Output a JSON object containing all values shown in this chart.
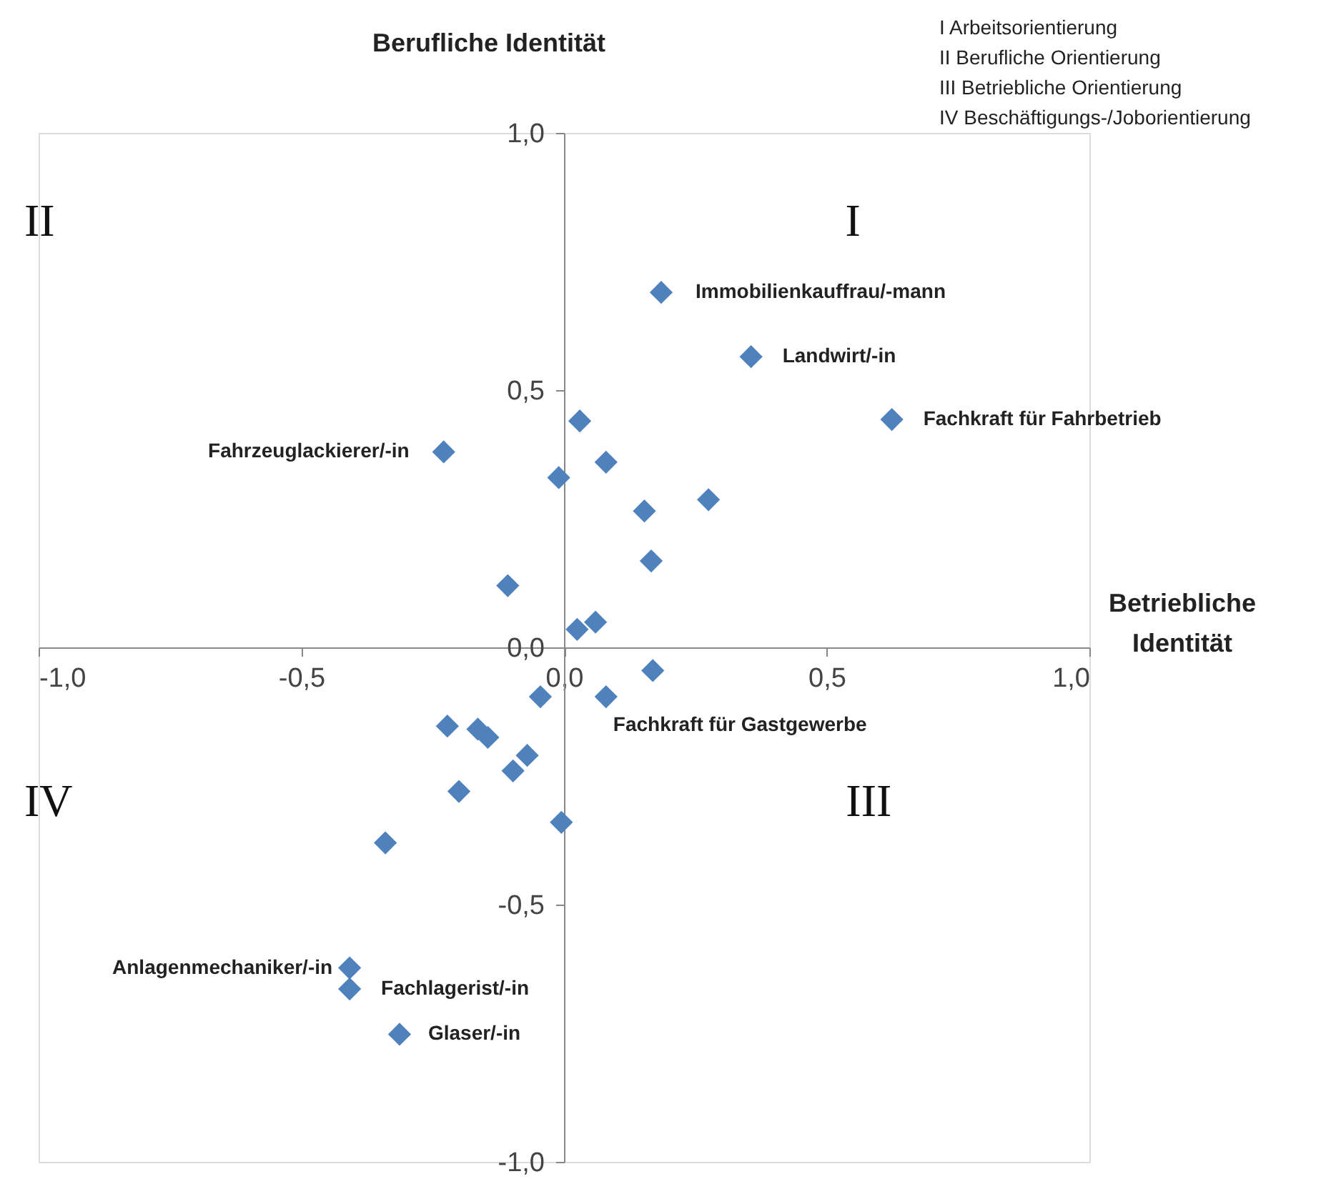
{
  "chart_data": {
    "type": "scatter",
    "xlabel": "Betriebliche Identität",
    "ylabel": "Berufliche Identität",
    "x": [
      0.185,
      0.356,
      0.624,
      -0.229,
      0.03,
      -0.01,
      0.08,
      0.153,
      0.275,
      0.166,
      -0.107,
      0.025,
      0.06,
      0.169,
      0.08,
      -0.045,
      -0.222,
      -0.164,
      -0.145,
      -0.07,
      -0.097,
      -0.2,
      -0.005,
      -0.34,
      -0.408,
      -0.408,
      -0.313
    ],
    "series": [
      {
        "color": "#4f81bd",
        "values": [
          0.69,
          0.565,
          0.443,
          0.38,
          0.44,
          0.33,
          0.36,
          0.265,
          0.287,
          0.168,
          0.12,
          0.035,
          0.049,
          -0.045,
          -0.096,
          -0.096,
          -0.153,
          -0.159,
          -0.175,
          -0.21,
          -0.24,
          -0.28,
          -0.34,
          -0.38,
          -0.623,
          -0.664,
          -0.752
        ]
      }
    ],
    "marker": "diamond",
    "xlim": [
      -1.0,
      1.0
    ],
    "ylim": [
      -1.0,
      1.0
    ],
    "xticks": [
      {
        "value": -1.0,
        "label": "-1,0"
      },
      {
        "value": -0.5,
        "label": "-0,5"
      },
      {
        "value": 0.0,
        "label": "0,0"
      },
      {
        "value": 0.5,
        "label": "0,5"
      },
      {
        "value": 1.0,
        "label": "1,0"
      }
    ],
    "yticks": [
      {
        "value": -1.0,
        "label": "-1,0"
      },
      {
        "value": -0.5,
        "label": "-0,5"
      },
      {
        "value": 0.0,
        "label": "0,0"
      },
      {
        "value": 0.5,
        "label": "0,5"
      },
      {
        "value": 1.0,
        "label": "1,0"
      }
    ],
    "grid": false,
    "annotations": [
      {
        "text": "Immobilienkauffrau/-mann",
        "x": 0.185,
        "y": 0.69
      },
      {
        "text": "Landwirt/-in",
        "x": 0.356,
        "y": 0.565
      },
      {
        "text": "Fachkraft für Fahrbetrieb",
        "x": 0.624,
        "y": 0.443
      },
      {
        "text": "Fahrzeuglackierer/-in",
        "x": -0.229,
        "y": 0.38
      },
      {
        "text": "Fachkraft für Gastgewerbe",
        "x": 0.08,
        "y": -0.096
      },
      {
        "text": "Anlagenmechaniker/-in",
        "x": -0.408,
        "y": -0.623
      },
      {
        "text": "Fachlagerist/-in",
        "x": -0.408,
        "y": -0.664
      },
      {
        "text": "Glaser/-in",
        "x": -0.313,
        "y": -0.752
      },
      "I",
      "II",
      "III",
      "IV",
      "I   Arbeitsorientierung",
      "II  Berufliche Orientierung",
      "III Betriebliche Orientierung",
      "IV Beschäftigungs-/Joborientierung"
    ]
  }
}
